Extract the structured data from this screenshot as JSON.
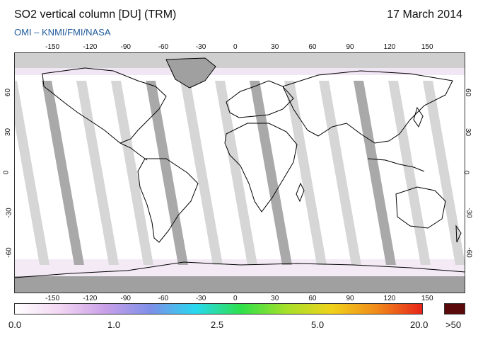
{
  "header": {
    "title": "SO2 vertical column [DU] (TRM)",
    "date": "17 March 2014",
    "credit": "OMI  –  KNMI/FMI/NASA"
  },
  "map": {
    "lon_ticks": [
      "-150",
      "-120",
      "-90",
      "-60",
      "-30",
      "0",
      "30",
      "60",
      "90",
      "120",
      "150"
    ],
    "lat_ticks_left": [
      "60",
      "30",
      "0",
      "-30",
      "-60"
    ],
    "lat_ticks_right": [
      "60",
      "30",
      "0",
      "-30",
      "-60"
    ],
    "colors": {
      "land_outline": "#000000",
      "no_data": "#a0a0a0",
      "swath_gap": "#cfcfcf",
      "background": "#ffffff"
    }
  },
  "colorbar": {
    "labels": [
      "0.0",
      "1.0",
      "2.5",
      "5.0",
      "20.0",
      ">50"
    ],
    "stops": [
      "#ffffff",
      "#f2d6f2",
      "#c9a0e8",
      "#7d8fe8",
      "#27d8f0",
      "#2ee04a",
      "#a6e02a",
      "#f0d21a",
      "#f08a1a",
      "#e8241a",
      "#5a0a0a"
    ]
  }
}
